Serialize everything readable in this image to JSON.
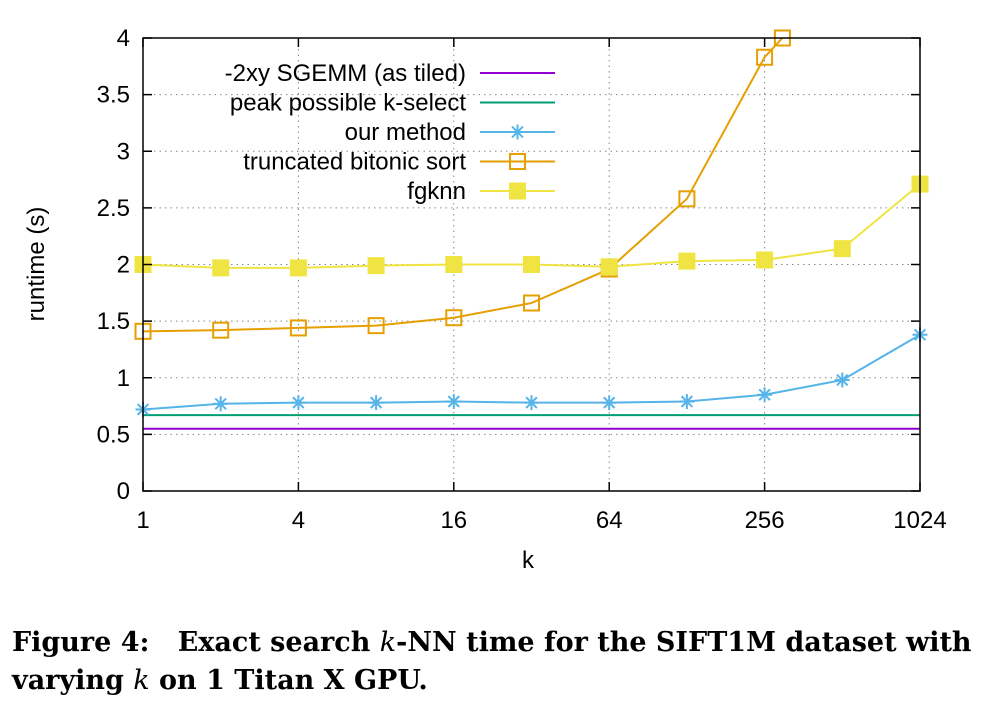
{
  "chart_data": {
    "type": "line",
    "xlabel": "k",
    "ylabel": "runtime (s)",
    "xscale": "log2",
    "xlim": [
      1,
      1024
    ],
    "ylim": [
      0,
      4
    ],
    "grid": true,
    "legend_position": "top-left",
    "x_ticks": [
      1,
      4,
      16,
      64,
      256,
      1024
    ],
    "x_tick_labels": [
      "1",
      "4",
      "16",
      "64",
      "256",
      "1024"
    ],
    "y_ticks": [
      0,
      0.5,
      1,
      1.5,
      2,
      2.5,
      3,
      3.5,
      4
    ],
    "y_tick_labels": [
      "0",
      "0.5",
      "1",
      "1.5",
      "2",
      "2.5",
      "3",
      "3.5",
      "4"
    ],
    "series": [
      {
        "name": "-2xy SGEMM (as tiled)",
        "color": "#9400d3",
        "marker": "none",
        "x": [
          1,
          1024
        ],
        "values": [
          0.55,
          0.55
        ]
      },
      {
        "name": "peak possible k-select",
        "color": "#009e73",
        "marker": "none",
        "x": [
          1,
          1024
        ],
        "values": [
          0.67,
          0.67
        ]
      },
      {
        "name": "our method",
        "color": "#56b4e9",
        "marker": "star",
        "x": [
          1,
          2,
          4,
          8,
          16,
          32,
          64,
          128,
          256,
          512,
          1024
        ],
        "values": [
          0.72,
          0.77,
          0.78,
          0.78,
          0.79,
          0.78,
          0.78,
          0.79,
          0.85,
          0.98,
          1.38
        ]
      },
      {
        "name": "truncated bitonic sort",
        "color": "#e69f00",
        "marker": "open-square",
        "x": [
          1,
          2,
          4,
          8,
          16,
          32,
          64,
          128,
          256,
          300
        ],
        "values": [
          1.41,
          1.42,
          1.44,
          1.46,
          1.53,
          1.66,
          1.96,
          2.58,
          3.83,
          4.0
        ]
      },
      {
        "name": "fgknn",
        "color": "#f0e442",
        "marker": "filled-square",
        "x": [
          1,
          2,
          4,
          8,
          16,
          32,
          64,
          128,
          256,
          512,
          1024
        ],
        "values": [
          2.0,
          1.97,
          1.97,
          1.99,
          2.0,
          2.0,
          1.98,
          2.03,
          2.04,
          2.14,
          2.71
        ]
      }
    ]
  },
  "caption": {
    "prefix": "Figure 4:",
    "text_1": "Exact search ",
    "var_k1": "k",
    "text_2": "-NN time for the SIFT1M dataset with varying ",
    "var_k2": "k",
    "text_3": " on 1 Titan X GPU."
  }
}
